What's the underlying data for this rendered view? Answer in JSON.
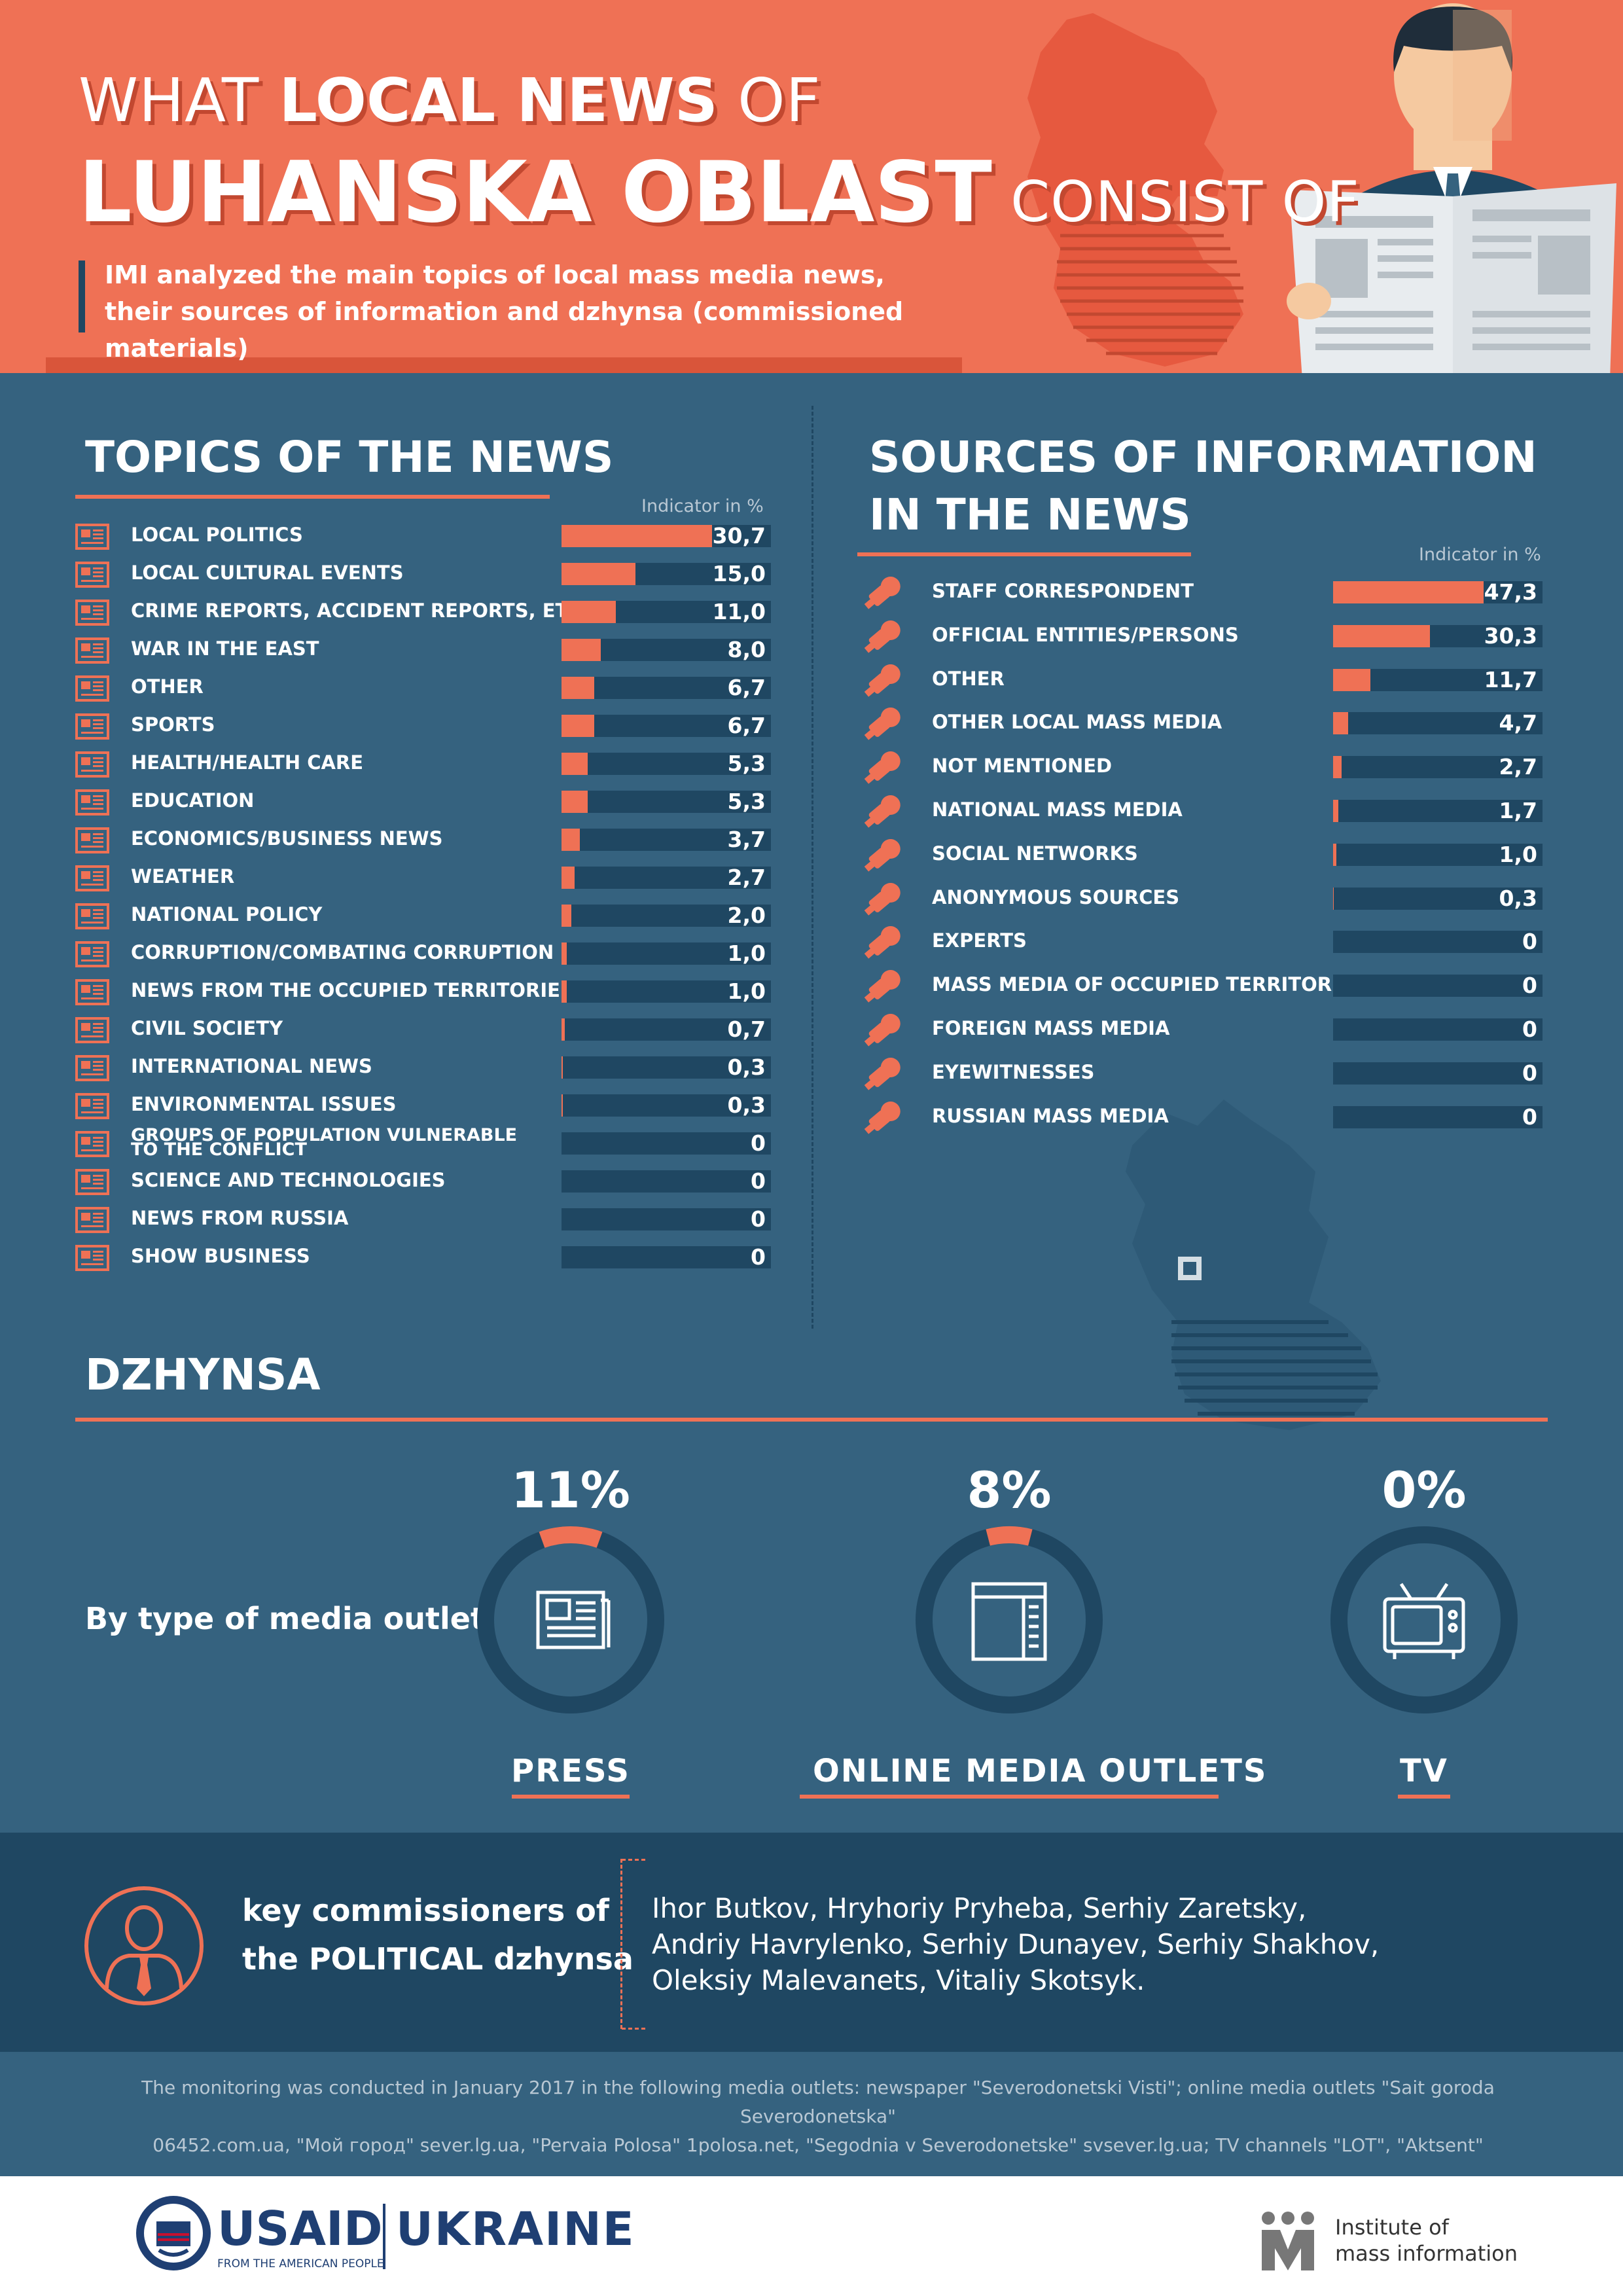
{
  "header": {
    "title_line1_a": "WHAT ",
    "title_line1_b": "LOCAL NEWS",
    "title_line1_c": " OF",
    "title_line2_a": "LUHANSKA OBLAST",
    "title_line2_b": " CONSIST OF",
    "subtitle": "IMI analyzed the main topics of local mass media news, their sources of information and dzhynsa (commissioned materials)"
  },
  "topics": {
    "title": "TOPICS OF THE NEWS",
    "indicator": "Indicator in %"
  },
  "sources": {
    "title_line1": "SOURCES OF INFORMATION",
    "title_line2": "IN THE NEWS",
    "indicator": "Indicator in %"
  },
  "chart_data": [
    {
      "type": "bar",
      "title": "TOPICS OF THE NEWS",
      "categories": [
        "LOCAL POLITICS",
        "LOCAL CULTURAL EVENTS",
        "CRIME REPORTS, ACCIDENT REPORTS, ETC.",
        "WAR IN THE EAST",
        "OTHER",
        "SPORTS",
        "HEALTH/HEALTH CARE",
        "EDUCATION",
        "ECONOMICS/BUSINESS NEWS",
        "WEATHER",
        "NATIONAL POLICY",
        "CORRUPTION/COMBATING CORRUPTION",
        "NEWS FROM THE OCCUPIED TERRITORIES",
        "CIVIL SOCIETY",
        "INTERNATIONAL NEWS",
        "ENVIRONMENTAL ISSUES",
        "GROUPS OF POPULATION VULNERABLE TO THE CONFLICT",
        "SCIENCE AND TECHNOLOGIES",
        "NEWS FROM RUSSIA",
        "SHOW BUSINESS"
      ],
      "values": [
        30.7,
        15.0,
        11.0,
        8.0,
        6.7,
        6.7,
        5.3,
        5.3,
        3.7,
        2.7,
        2.0,
        1.0,
        1.0,
        0.7,
        0.3,
        0.3,
        0,
        0,
        0,
        0
      ],
      "labels": [
        "30,7",
        "15,0",
        "11,0",
        "8,0",
        "6,7",
        "6,7",
        "5,3",
        "5,3",
        "3,7",
        "2,7",
        "2,0",
        "1,0",
        "1,0",
        "0,7",
        "0,3",
        "0,3",
        "0",
        "0",
        "0",
        "0"
      ],
      "ylabel": "Indicator in %",
      "ylim": [
        0,
        30.7
      ]
    },
    {
      "type": "bar",
      "title": "SOURCES OF INFORMATION IN THE NEWS",
      "categories": [
        "STAFF CORRESPONDENT",
        "OFFICIAL ENTITIES/PERSONS",
        "OTHER",
        "OTHER LOCAL MASS MEDIA",
        "NOT MENTIONED",
        "NATIONAL MASS MEDIA",
        "SOCIAL NETWORKS",
        "ANONYMOUS SOURCES",
        "EXPERTS",
        "MASS MEDIA OF OCCUPIED TERRITORIES",
        "FOREIGN MASS MEDIA",
        "EYEWITNESSES",
        "RUSSIAN MASS MEDIA"
      ],
      "values": [
        47.3,
        30.3,
        11.7,
        4.7,
        2.7,
        1.7,
        1.0,
        0.3,
        0,
        0,
        0,
        0,
        0
      ],
      "labels": [
        "47,3",
        "30,3",
        "11,7",
        "4,7",
        "2,7",
        "1,7",
        "1,0",
        "0,3",
        "0",
        "0",
        "0",
        "0",
        "0"
      ],
      "ylabel": "Indicator in %",
      "ylim": [
        0,
        47.3
      ]
    },
    {
      "type": "pie",
      "title": "DZHYNSA",
      "subtitle": "By type of media outlet",
      "categories": [
        "PRESS",
        "ONLINE MEDIA OUTLETS",
        "TV"
      ],
      "values": [
        11,
        8,
        0
      ],
      "labels": [
        "11%",
        "8%",
        "0%"
      ]
    }
  ],
  "dzhynsa": {
    "title": "DZHYNSA",
    "by_type": "By type of media outlet",
    "icons": [
      "newspaper-icon",
      "browser-window-icon",
      "tv-icon"
    ]
  },
  "commissioners": {
    "label_line1": "key commissioners of",
    "label_line2": "the POLITICAL dzhynsa",
    "names_line1": "Ihor Butkov, Hryhoriy Pryheba, Serhiy Zaretsky,",
    "names_line2": "Andriy Havrylenko, Serhiy Dunayev, Serhiy Shakhov,",
    "names_line3": "Oleksiy Malevanets, Vitaliy Skotsyk."
  },
  "footer": {
    "note_line1": "The monitoring was conducted in January 2017 in the following media outlets: newspaper \"Severodonetski Visti\"; online media outlets \"Sait goroda Severodonetska\"",
    "note_line2": "06452.com.ua, \"Мой город\" sever.lg.ua, \"Pervaia Polosa\" 1polosa.net, \"Segodnia v Severodonetske\" svsever.lg.ua; TV channels \"LOT\", \"Aktsent\"",
    "usaid": "USAID",
    "usaid_tagline": "FROM THE AMERICAN PEOPLE",
    "ukraine": "UKRAINE",
    "imi_line1": "Institute of",
    "imi_line2": "mass information"
  },
  "colors": {
    "accent": "#ef7155",
    "background": "#35627f",
    "dark": "#1f4762"
  }
}
